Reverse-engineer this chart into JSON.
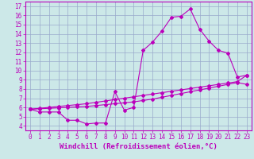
{
  "xlabel": "Windchill (Refroidissement éolien,°C)",
  "xlim": [
    -0.5,
    23.5
  ],
  "ylim": [
    3.5,
    17.5
  ],
  "xticks": [
    0,
    1,
    2,
    3,
    4,
    5,
    6,
    7,
    8,
    9,
    10,
    11,
    12,
    13,
    14,
    15,
    16,
    17,
    18,
    19,
    20,
    21,
    22,
    23
  ],
  "yticks": [
    4,
    5,
    6,
    7,
    8,
    9,
    10,
    11,
    12,
    13,
    14,
    15,
    16,
    17
  ],
  "line1_x": [
    0,
    1,
    2,
    3,
    4,
    5,
    6,
    7,
    8,
    9,
    10,
    11,
    12,
    13,
    14,
    15,
    16,
    17,
    18,
    19,
    20,
    21,
    22,
    23
  ],
  "line1_y": [
    5.8,
    5.5,
    5.5,
    5.5,
    4.6,
    4.6,
    4.2,
    4.3,
    4.3,
    7.7,
    5.7,
    6.0,
    12.2,
    13.1,
    14.3,
    15.8,
    15.9,
    16.7,
    14.5,
    13.2,
    12.2,
    11.9,
    9.3,
    9.5
  ],
  "line2_x": [
    0,
    1,
    2,
    3,
    4,
    5,
    6,
    7,
    8,
    9,
    10,
    11,
    12,
    13,
    14,
    15,
    16,
    17,
    18,
    19,
    20,
    21,
    22,
    23
  ],
  "line2_y": [
    5.8,
    5.9,
    6.0,
    6.1,
    6.2,
    6.3,
    6.4,
    6.55,
    6.7,
    6.85,
    7.0,
    7.15,
    7.3,
    7.45,
    7.6,
    7.75,
    7.9,
    8.05,
    8.2,
    8.35,
    8.5,
    8.65,
    8.8,
    9.5
  ],
  "line3_x": [
    0,
    1,
    2,
    3,
    4,
    5,
    6,
    7,
    8,
    9,
    10,
    11,
    12,
    13,
    14,
    15,
    16,
    17,
    18,
    19,
    20,
    21,
    22,
    23
  ],
  "line3_y": [
    5.8,
    5.85,
    5.9,
    5.95,
    6.0,
    6.05,
    6.1,
    6.2,
    6.3,
    6.4,
    6.5,
    6.6,
    6.75,
    6.9,
    7.1,
    7.3,
    7.5,
    7.7,
    7.9,
    8.1,
    8.3,
    8.5,
    8.7,
    8.5
  ],
  "color": "#bb00bb",
  "bg_color": "#cce8e8",
  "grid_color": "#99aacc",
  "tick_fontsize": 5.5,
  "label_fontsize": 6.5
}
